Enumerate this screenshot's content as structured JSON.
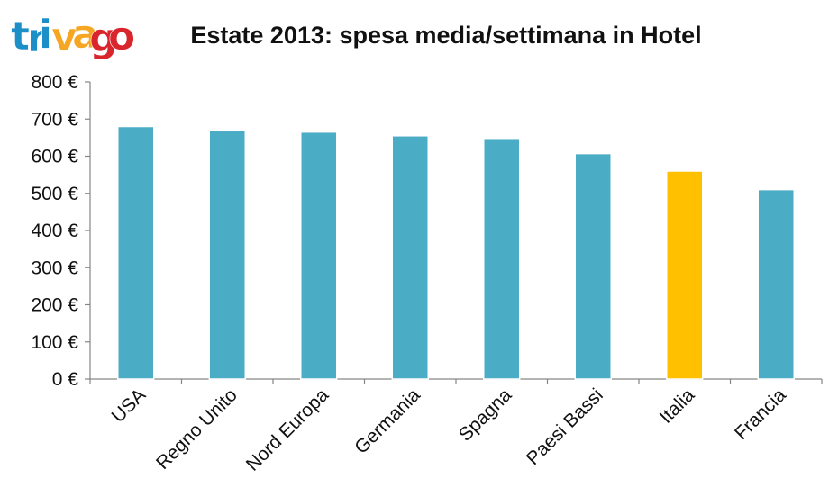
{
  "logo": {
    "letters": [
      "t",
      "r",
      "i",
      "v",
      "a",
      "g",
      "o"
    ],
    "colors": [
      "#1c8fc9",
      "#1c8fc9",
      "#1c8fc9",
      "#f5a623",
      "#f5a623",
      "#d9262c",
      "#d9262c"
    ]
  },
  "colors": {
    "bar": "#4bacc6",
    "highlight": "#ffc000",
    "axis": "#868686"
  },
  "chart_data": {
    "type": "bar",
    "title": "Estate 2013: spesa media/settimana in Hotel",
    "xlabel": "",
    "ylabel": "",
    "categories": [
      "USA",
      "Regno Unito",
      "Nord Europa",
      "Germania",
      "Spagna",
      "Paesi Bassi",
      "Italia",
      "Francia"
    ],
    "values": [
      680,
      670,
      665,
      655,
      648,
      607,
      560,
      510
    ],
    "highlight_index": 6,
    "ylim": [
      0,
      800
    ],
    "yticks": [
      0,
      100,
      200,
      300,
      400,
      500,
      600,
      700,
      800
    ],
    "ytick_labels": [
      "0 €",
      "100 €",
      "200 €",
      "300 €",
      "400 €",
      "500 €",
      "600 €",
      "700 €",
      "800 €"
    ],
    "grid": false,
    "legend": "none"
  }
}
